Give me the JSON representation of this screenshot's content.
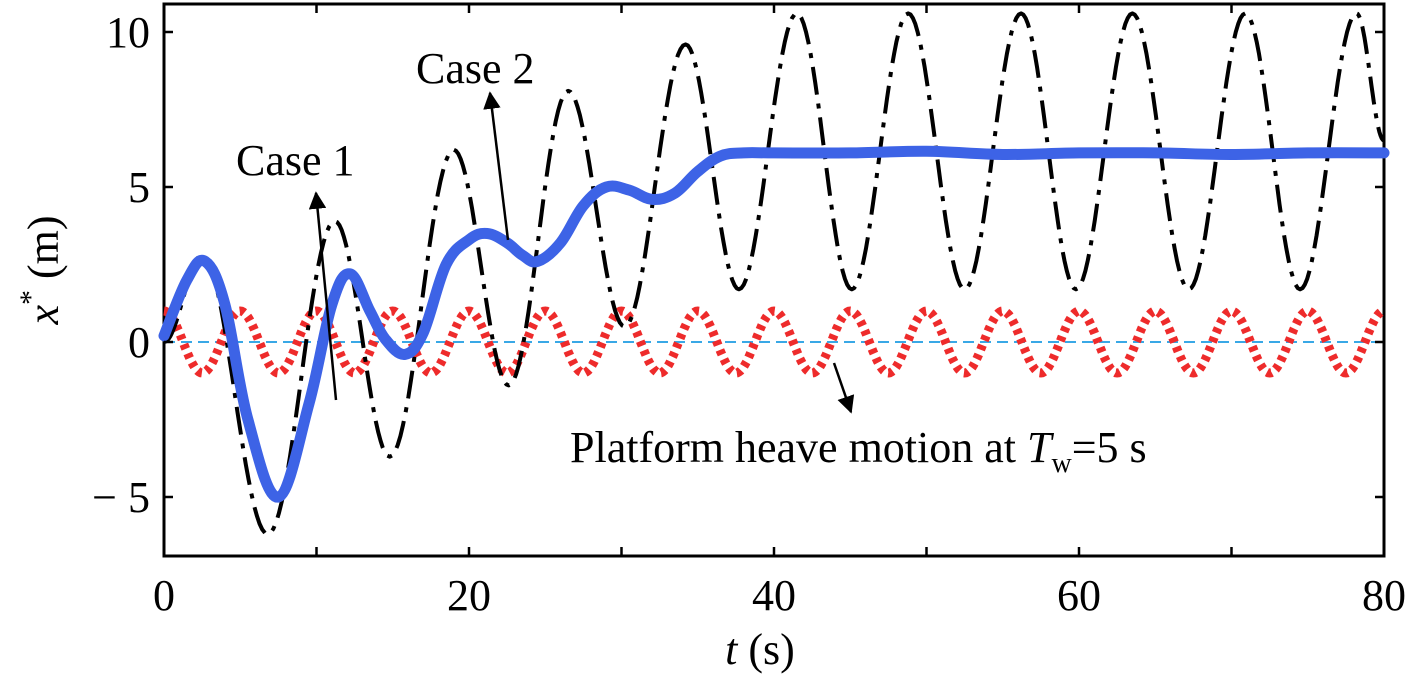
{
  "chart_data": {
    "type": "line",
    "xlabel": {
      "var": "t",
      "unit": " (s)"
    },
    "ylabel": {
      "var": "x",
      "sup": "*",
      "unit": " (m)"
    },
    "xlim": [
      0,
      80
    ],
    "ylim": [
      -7,
      11
    ],
    "x_ticks": [
      0,
      20,
      40,
      60,
      80
    ],
    "x_tick_labels": [
      "0",
      "20",
      "40",
      "60",
      "80"
    ],
    "y_ticks": [
      -5,
      0,
      5,
      10
    ],
    "y_tick_labels": [
      "− 5",
      "0",
      "5",
      "10"
    ],
    "grid": false,
    "colors": {
      "case1": "#3d63e6",
      "case2": "#000000",
      "heave": "#ee2b2b",
      "zero": "#39a8e6"
    },
    "series": [
      {
        "name": "Case 1",
        "style": "solid-thick",
        "x": [
          0,
          1.5,
          2.7,
          4,
          5.5,
          7.5,
          9.5,
          11,
          12.2,
          13.5,
          14.5,
          15.8,
          17,
          18.5,
          20,
          21.2,
          22.5,
          23.5,
          24.5,
          26,
          27.5,
          29,
          30.5,
          32,
          33.5,
          35,
          36.5,
          38,
          40,
          45,
          50,
          55,
          60,
          65,
          70,
          75,
          80
        ],
        "y": [
          0.2,
          2.0,
          2.6,
          1.2,
          -2.5,
          -5.0,
          -2.0,
          1.2,
          2.2,
          1.0,
          0.1,
          -0.4,
          0.3,
          2.5,
          3.3,
          3.5,
          3.2,
          2.8,
          2.6,
          3.2,
          4.4,
          5.0,
          4.9,
          4.6,
          4.8,
          5.5,
          6.0,
          6.1,
          6.1,
          6.1,
          6.15,
          6.05,
          6.1,
          6.1,
          6.05,
          6.1,
          6.1
        ]
      },
      {
        "name": "Case 2",
        "style": "dash-dot",
        "x": [
          0,
          2.5,
          6.8,
          11.2,
          14.8,
          19,
          22.6,
          26.5,
          30.2,
          34.2,
          37.7,
          41.5,
          45.1,
          48.8,
          52.5,
          56.2,
          59.8,
          63.5,
          67.2,
          70.9,
          74.5,
          78.2,
          80
        ],
        "y": [
          0,
          2.8,
          -6.2,
          3.9,
          -3.7,
          6.2,
          -1.4,
          8.1,
          0.5,
          9.6,
          1.7,
          10.6,
          1.7,
          10.6,
          1.7,
          10.6,
          1.7,
          10.6,
          1.7,
          10.6,
          1.7,
          10.6,
          6.5
        ]
      },
      {
        "name": "Platform heave motion at Tw=5 s",
        "style": "dotted",
        "amplitude": 1.0,
        "period": 5,
        "phase_deg": 90
      }
    ],
    "annotations": [
      {
        "text": "Case 1"
      },
      {
        "text": "Case 2"
      },
      {
        "prefix": "Platform heave motion at ",
        "var": "T",
        "sub": "w",
        "suffix": "=5 s"
      }
    ]
  }
}
